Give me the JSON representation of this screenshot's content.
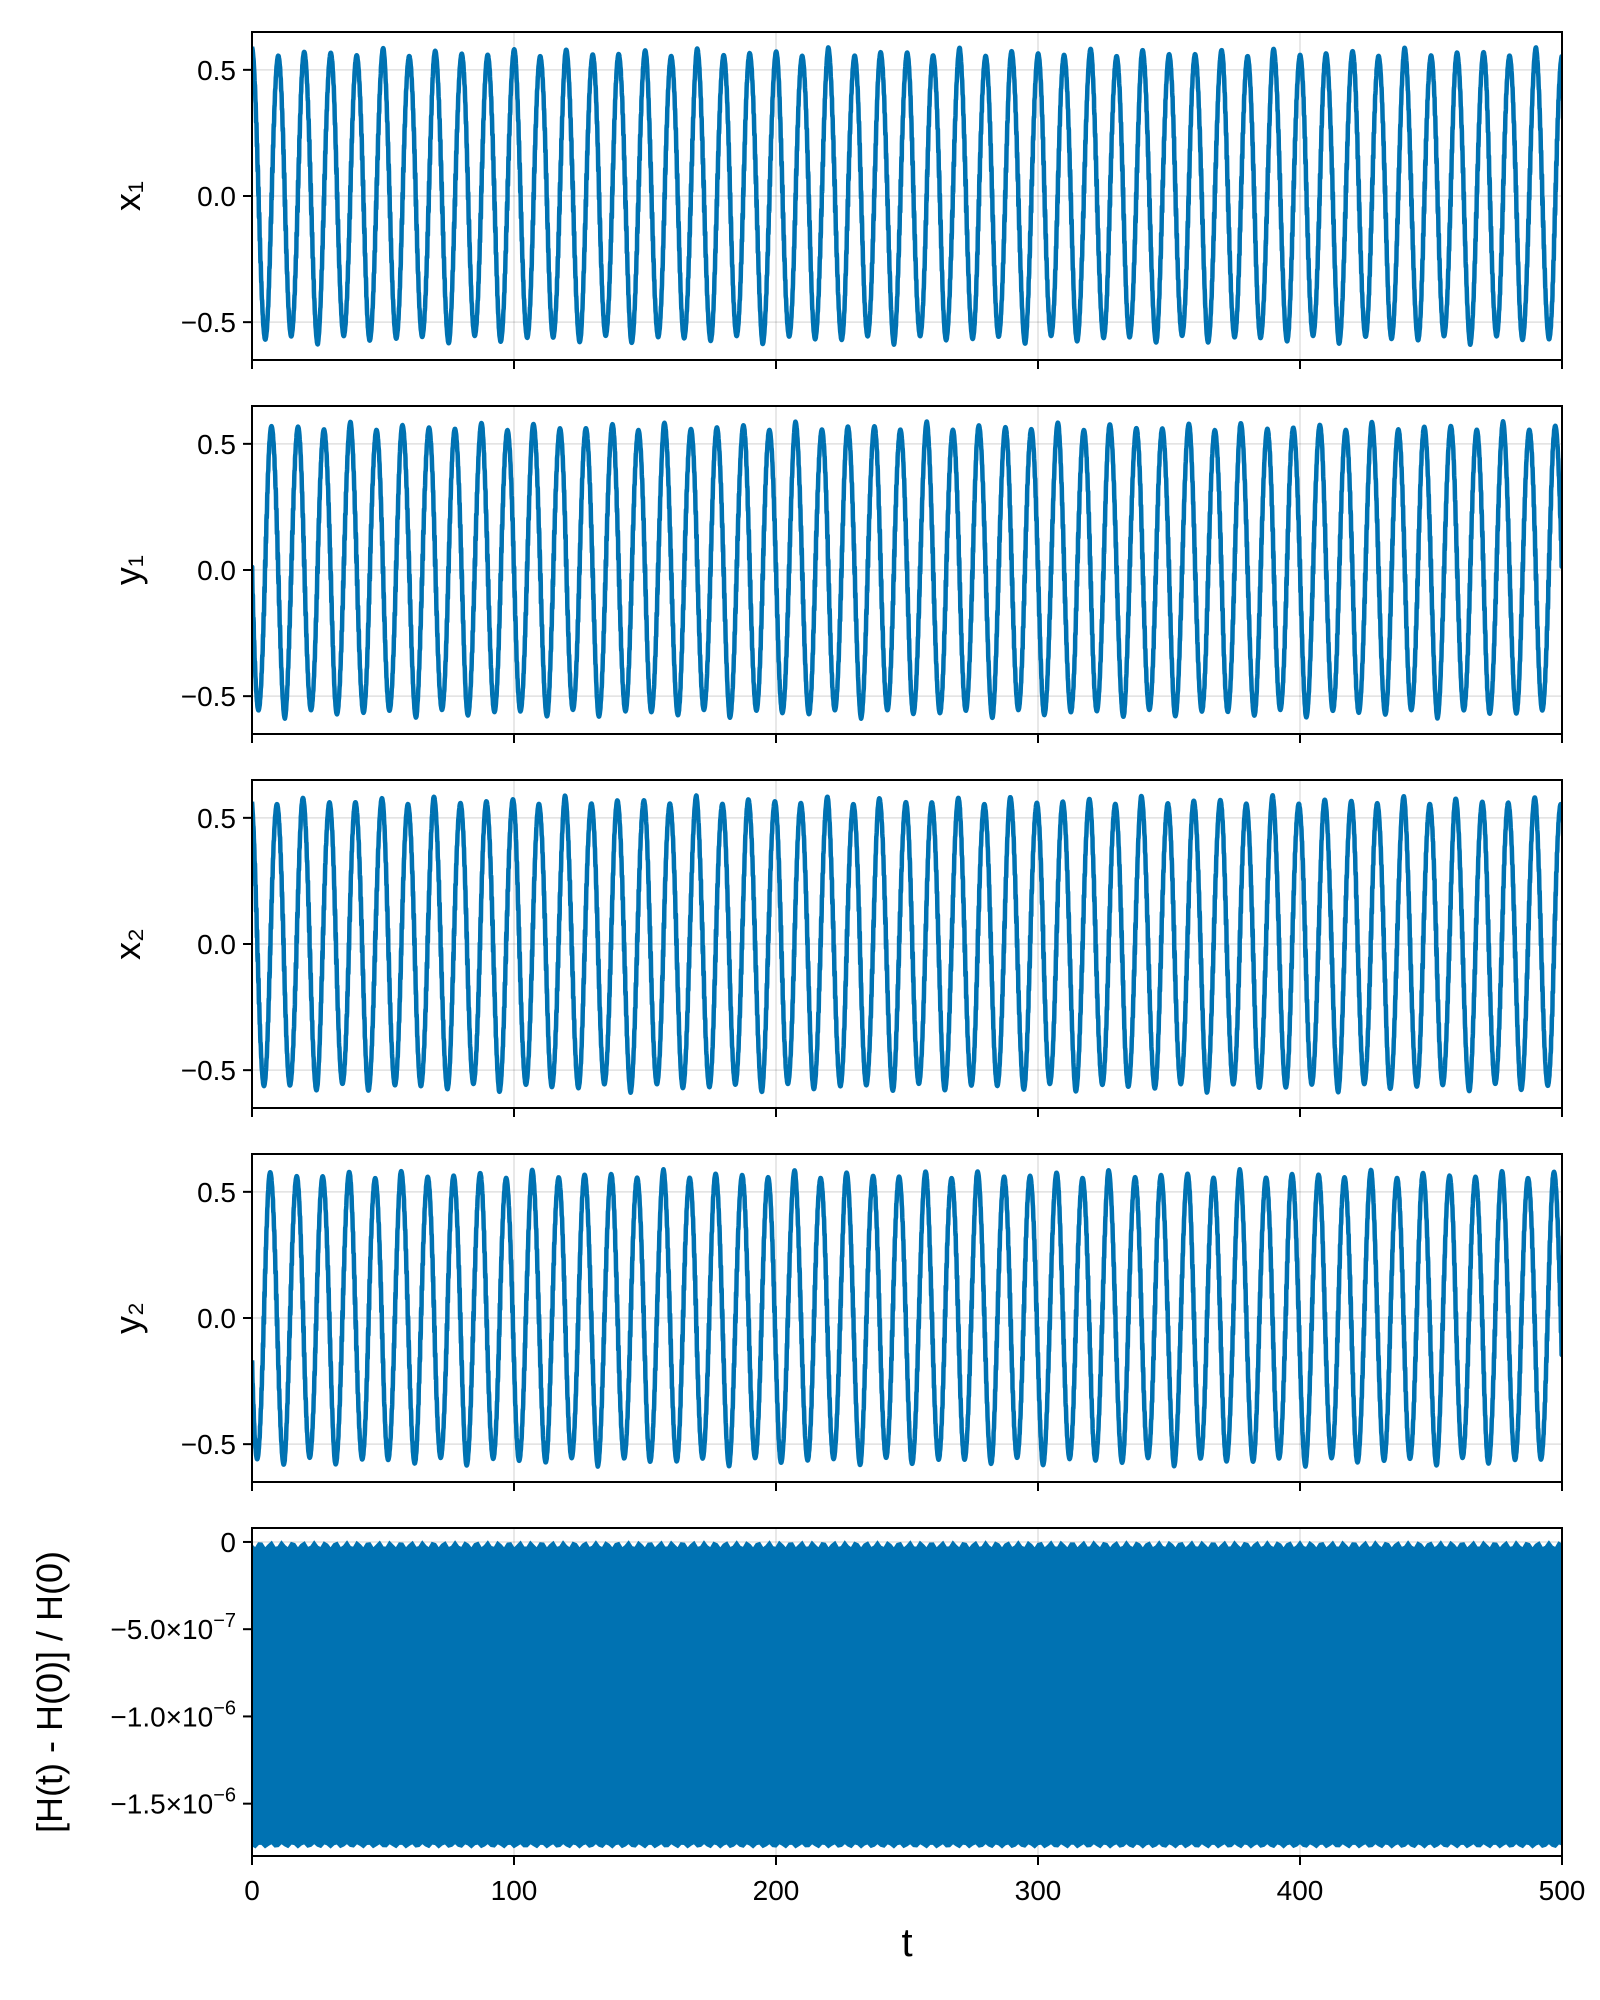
{
  "chart_data": [
    {
      "type": "line",
      "ylabel": "x₁",
      "xlim": [
        0,
        500
      ],
      "ylim": [
        -0.65,
        0.65
      ],
      "yticks": [
        {
          "v": -0.5,
          "t": "−0.5"
        },
        {
          "v": 0.0,
          "t": "0.0"
        },
        {
          "v": 0.5,
          "t": "0.5"
        }
      ],
      "xticks": [
        0,
        100,
        200,
        300,
        400,
        500
      ],
      "grid": true,
      "color": "#0072b2",
      "series": [
        {
          "model": "fast-oscillation",
          "amplitude": 0.59,
          "period": 10.0,
          "phase": 0.0,
          "trace": "cos",
          "t_range": [
            0,
            500
          ]
        }
      ]
    },
    {
      "type": "line",
      "ylabel": "y₁",
      "xlim": [
        0,
        500
      ],
      "ylim": [
        -0.65,
        0.65
      ],
      "yticks": [
        {
          "v": -0.5,
          "t": "−0.5"
        },
        {
          "v": 0.0,
          "t": "0.0"
        },
        {
          "v": 0.5,
          "t": "0.5"
        }
      ],
      "xticks": [
        0,
        100,
        200,
        300,
        400,
        500
      ],
      "grid": true,
      "color": "#0072b2",
      "series": [
        {
          "model": "fast-oscillation",
          "amplitude": 0.59,
          "period": 10.0,
          "phase": 0.0,
          "trace": "sin",
          "t_range": [
            0,
            500
          ]
        }
      ]
    },
    {
      "type": "line",
      "ylabel": "x₂",
      "xlim": [
        0,
        500
      ],
      "ylim": [
        -0.65,
        0.65
      ],
      "yticks": [
        {
          "v": -0.5,
          "t": "−0.5"
        },
        {
          "v": 0.0,
          "t": "0.0"
        },
        {
          "v": 0.5,
          "t": "0.5"
        }
      ],
      "xticks": [
        0,
        100,
        200,
        300,
        400,
        500
      ],
      "grid": true,
      "color": "#0072b2",
      "series": [
        {
          "model": "fast-oscillation",
          "amplitude": 0.59,
          "period": 10.0,
          "phase": 0.3,
          "trace": "cos",
          "t_range": [
            0,
            500
          ]
        }
      ]
    },
    {
      "type": "line",
      "ylabel": "y₂",
      "xlim": [
        0,
        500
      ],
      "ylim": [
        -0.65,
        0.65
      ],
      "yticks": [
        {
          "v": -0.5,
          "t": "−0.5"
        },
        {
          "v": 0.0,
          "t": "0.0"
        },
        {
          "v": 0.5,
          "t": "0.5"
        }
      ],
      "xticks": [
        0,
        100,
        200,
        300,
        400,
        500
      ],
      "grid": true,
      "color": "#0072b2",
      "series": [
        {
          "model": "fast-oscillation",
          "amplitude": 0.59,
          "period": 10.0,
          "phase": 0.3,
          "trace": "sin",
          "t_range": [
            0,
            500
          ]
        }
      ]
    },
    {
      "type": "line",
      "ylabel": "[H(t) - H(0)] / H(0)",
      "xlabel": "t",
      "xlim": [
        0,
        500
      ],
      "ylim": [
        -1.8e-06,
        8e-08
      ],
      "yticks": [
        {
          "v": 0,
          "t": "0"
        },
        {
          "v": -5e-07,
          "t": "−5.0×10",
          "exp": "−7"
        },
        {
          "v": -1e-06,
          "t": "−1.0×10",
          "exp": "−6"
        },
        {
          "v": -1.5e-06,
          "t": "−1.5×10",
          "exp": "−6"
        }
      ],
      "xticks": [
        0,
        100,
        200,
        300,
        400,
        500
      ],
      "xtick_labels": [
        "0",
        "100",
        "200",
        "300",
        "400",
        "500"
      ],
      "grid": true,
      "color": "#0072b2",
      "series": [
        {
          "model": "dense-oscillation",
          "max": 0.0,
          "min": -1.75e-06,
          "t_range": [
            0,
            500
          ]
        }
      ]
    }
  ]
}
